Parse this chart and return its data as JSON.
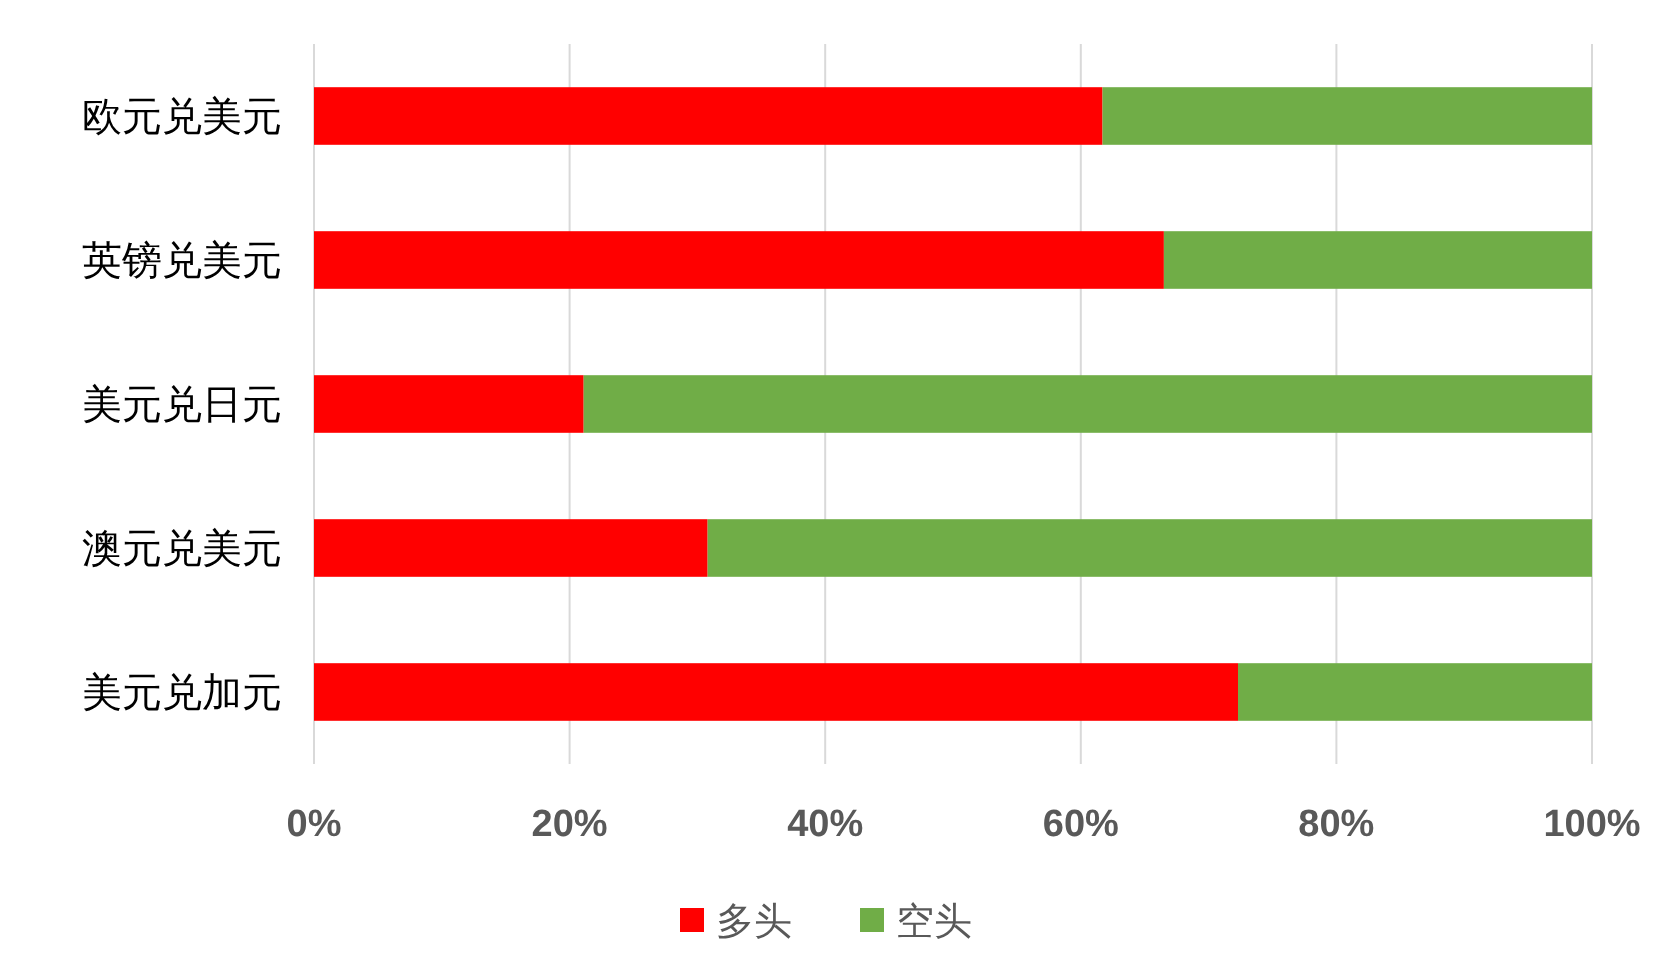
{
  "chart_data": {
    "type": "bar",
    "orientation": "horizontal",
    "stacked": true,
    "categories": [
      "欧元兑美元",
      "英镑兑美元",
      "美元兑日元",
      "澳元兑美元",
      "美元兑加元"
    ],
    "series": [
      {
        "name": "多头",
        "color": "#ff0000",
        "values": [
          61.7,
          66.5,
          21.1,
          30.8,
          72.3
        ]
      },
      {
        "name": "空头",
        "color": "#70ad47",
        "values": [
          38.3,
          33.5,
          78.9,
          69.2,
          27.7
        ]
      }
    ],
    "xlim": [
      0,
      100
    ],
    "xticks": [
      {
        "value": 0,
        "label": "0%"
      },
      {
        "value": 20,
        "label": "20%"
      },
      {
        "value": 40,
        "label": "40%"
      },
      {
        "value": 60,
        "label": "60%"
      },
      {
        "value": 80,
        "label": "80%"
      },
      {
        "value": 100,
        "label": "100%"
      }
    ],
    "grid": "x",
    "legend": "bottom"
  }
}
